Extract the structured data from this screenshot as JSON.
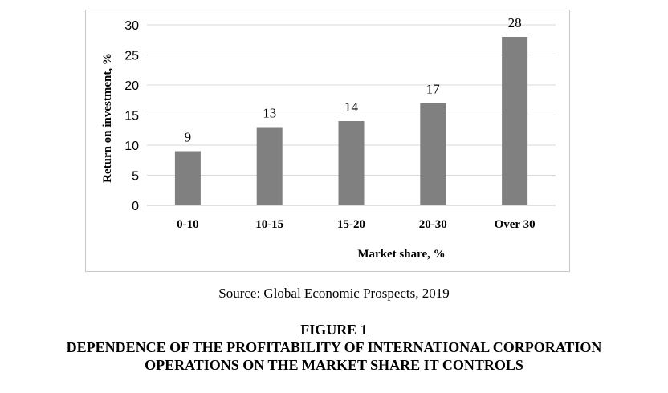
{
  "chart_data": {
    "type": "bar",
    "categories": [
      "0-10",
      "10-15",
      "15-20",
      "20-30",
      "Over  30"
    ],
    "values": [
      9,
      13,
      14,
      17,
      28
    ],
    "data_labels": [
      "9",
      "13",
      "14",
      "17",
      "28"
    ],
    "xlabel": "Market share, %",
    "ylabel": "Return on investment, %",
    "ylim": [
      0,
      30
    ],
    "yticks": [
      0,
      5,
      10,
      15,
      20,
      25,
      30
    ],
    "grid": true,
    "bar_color": "#808080",
    "grid_color": "#d9d9d9"
  },
  "source": "Source: Global Economic Prospects, 2019",
  "figure": {
    "number": "FIGURE 1",
    "title_line1": "DEPENDENCE OF THE PROFITABILITY OF INTERNATIONAL CORPORATION",
    "title_line2": "OPERATIONS ON THE MARKET SHARE IT CONTROLS"
  }
}
